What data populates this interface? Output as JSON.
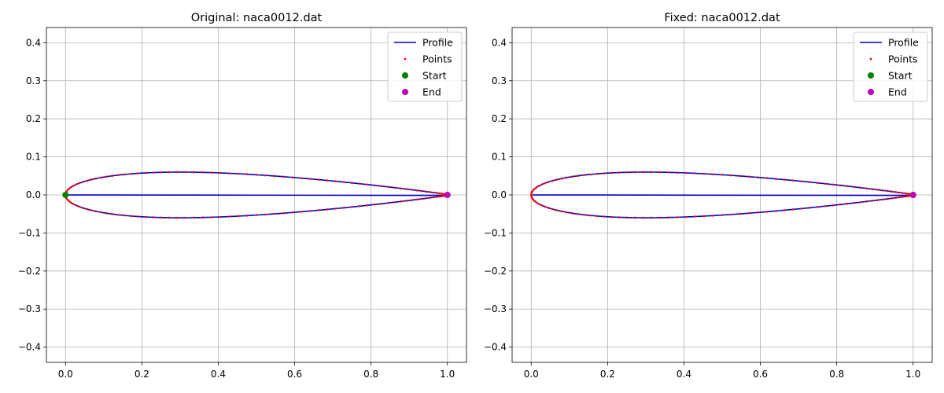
{
  "chart_data": [
    {
      "type": "line",
      "title": "Original: naca0012.dat",
      "xlim": [
        -0.05,
        1.05
      ],
      "ylim": [
        -0.44,
        0.44
      ],
      "x_ticks": [
        0.0,
        0.2,
        0.4,
        0.6,
        0.8,
        1.0
      ],
      "x_tick_labels": [
        "0.0",
        "0.2",
        "0.4",
        "0.6",
        "0.8",
        "1.0"
      ],
      "y_ticks": [
        -0.4,
        -0.3,
        -0.2,
        -0.1,
        0.0,
        0.1,
        0.2,
        0.3,
        0.4
      ],
      "y_tick_labels": [
        "−0.4",
        "−0.3",
        "−0.2",
        "−0.1",
        "0.0",
        "0.1",
        "0.2",
        "0.3",
        "0.4"
      ],
      "grid": true,
      "legend_position": "top-right",
      "legend": [
        {
          "label": "Profile",
          "kind": "line",
          "color": "#0000cc"
        },
        {
          "label": "Points",
          "kind": "dot",
          "color": "#ff0000"
        },
        {
          "label": "Start",
          "kind": "marker",
          "color": "#008000"
        },
        {
          "label": "End",
          "kind": "marker",
          "color": "#bf00bf"
        }
      ],
      "series": [
        {
          "name": "Profile",
          "style": "line",
          "color": "#0000cc",
          "profile": "naca0012",
          "thickness": 0.12,
          "closing_chord": true
        },
        {
          "name": "Points",
          "style": "dot",
          "color": "#ff0000",
          "profile": "naca0012",
          "thickness": 0.12,
          "n_points_per_surface": 66
        },
        {
          "name": "Start",
          "style": "marker",
          "color": "#008000",
          "x": 0.0,
          "y": 0.0
        },
        {
          "name": "End",
          "style": "marker",
          "color": "#bf00bf",
          "x": 1.0,
          "y": 0.0
        }
      ]
    },
    {
      "type": "line",
      "title": "Fixed: naca0012.dat",
      "xlim": [
        -0.05,
        1.05
      ],
      "ylim": [
        -0.44,
        0.44
      ],
      "x_ticks": [
        0.0,
        0.2,
        0.4,
        0.6,
        0.8,
        1.0
      ],
      "x_tick_labels": [
        "0.0",
        "0.2",
        "0.4",
        "0.6",
        "0.8",
        "1.0"
      ],
      "y_ticks": [
        -0.4,
        -0.3,
        -0.2,
        -0.1,
        0.0,
        0.1,
        0.2,
        0.3,
        0.4
      ],
      "y_tick_labels": [
        "−0.4",
        "−0.3",
        "−0.2",
        "−0.1",
        "0.0",
        "0.1",
        "0.2",
        "0.3",
        "0.4"
      ],
      "grid": true,
      "legend_position": "top-right",
      "legend": [
        {
          "label": "Profile",
          "kind": "line",
          "color": "#0000cc"
        },
        {
          "label": "Points",
          "kind": "dot",
          "color": "#ff0000"
        },
        {
          "label": "Start",
          "kind": "marker",
          "color": "#008000"
        },
        {
          "label": "End",
          "kind": "marker",
          "color": "#bf00bf"
        }
      ],
      "series": [
        {
          "name": "Profile",
          "style": "line",
          "color": "#0000cc",
          "profile": "naca0012",
          "thickness": 0.12,
          "closing_chord": true
        },
        {
          "name": "Points",
          "style": "dot",
          "color": "#ff0000",
          "profile": "naca0012",
          "thickness": 0.12,
          "n_points_per_surface": 66
        },
        {
          "name": "Start",
          "style": "marker",
          "color": "#008000",
          "x": 1.0,
          "y": 0.0
        },
        {
          "name": "End",
          "style": "marker",
          "color": "#bf00bf",
          "x": 1.0,
          "y": 0.0
        }
      ]
    }
  ]
}
